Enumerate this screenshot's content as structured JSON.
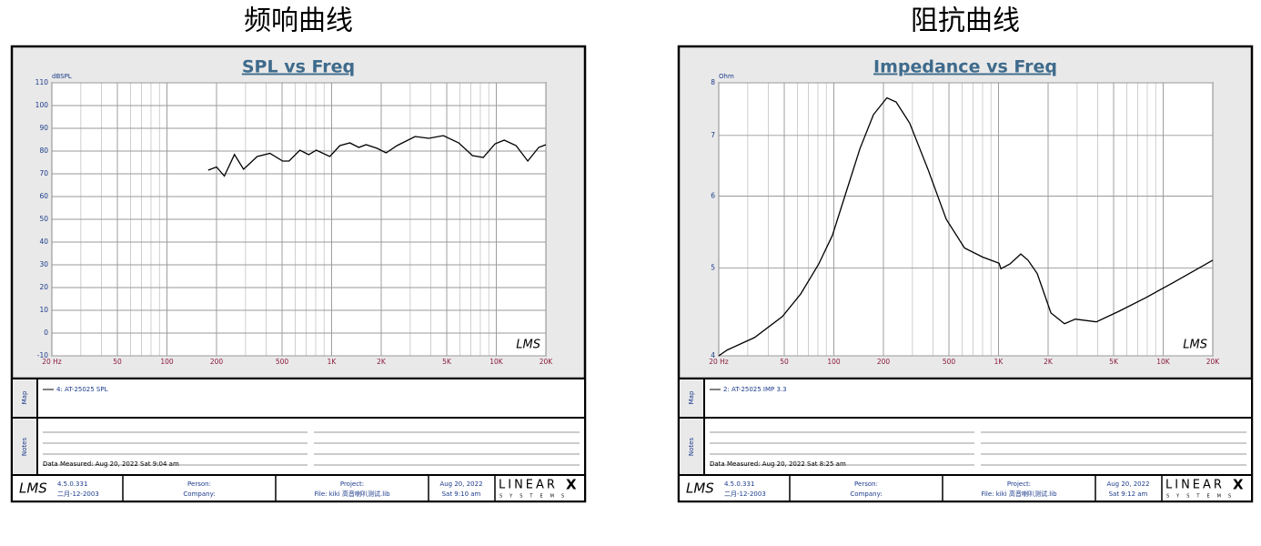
{
  "chart_data": [
    {
      "type": "line",
      "heading": "频响曲线",
      "title": "SPL vs Freq",
      "y_label": "dBSPL",
      "log_x": true,
      "log_y": false,
      "grid": true,
      "xlim": [
        20,
        20000
      ],
      "xticks": [
        {
          "value": 20,
          "label": "20 Hz"
        },
        50,
        100,
        200,
        500,
        {
          "value": 1000,
          "label": "1K"
        },
        {
          "value": 2000,
          "label": "2K"
        },
        {
          "value": 5000,
          "label": "5K"
        },
        {
          "value": 10000,
          "label": "10K"
        },
        {
          "value": 20000,
          "label": "20K"
        }
      ],
      "ylim": [
        -10,
        110
      ],
      "yticks": [
        -10,
        0,
        10,
        20,
        30,
        40,
        50,
        60,
        70,
        80,
        90,
        100,
        110
      ],
      "x": [
        178,
        200,
        223,
        257,
        292,
        353,
        422,
        504,
        551,
        641,
        726,
        806,
        975,
        1122,
        1289,
        1463,
        1619,
        1888,
        2143,
        2494,
        3215,
        3889,
        4766,
        5911,
        7161,
        8336,
        9837,
        11163,
        13178,
        15530,
        18080,
        20000
      ],
      "series": [
        {
          "name": "4: AT-25025 SPL",
          "color": "#000000",
          "values": [
            71.6,
            73,
            69,
            78.5,
            72,
            77.6,
            79,
            75.6,
            75.6,
            80.4,
            78.4,
            80.4,
            77.6,
            82.4,
            83.6,
            81.6,
            82.8,
            81.2,
            79.2,
            82.4,
            86.4,
            85.6,
            86.8,
            83.6,
            78,
            77.2,
            83.2,
            84.8,
            82.4,
            75.6,
            81.6,
            82.8
          ]
        }
      ],
      "watermark": "LMS",
      "map_label": "Map",
      "notes_label": "Notes",
      "notes": "Data Measured: Aug 20, 2022  Sat  9:04 am",
      "version": "4.5.0.331",
      "date_code": "二月-12-2003",
      "person_label": "Person:",
      "company_label": "Company:",
      "project_label": "Project:",
      "file": "File: kiki 高音喇叭测试.lib",
      "print_date": "Aug 20, 2022",
      "print_time": "Sat  9:10 am",
      "brand": "LINEAR",
      "brand_mark": "X",
      "brand_sub": "SYSTEMS"
    },
    {
      "type": "line",
      "heading": "阻抗曲线",
      "title": "Impedance vs Freq",
      "y_label": "Ohm",
      "log_x": true,
      "log_y": true,
      "grid": true,
      "xlim": [
        20,
        20000
      ],
      "xticks": [
        {
          "value": 20,
          "label": "20 Hz"
        },
        50,
        100,
        200,
        500,
        {
          "value": 1000,
          "label": "1K"
        },
        {
          "value": 2000,
          "label": "2K"
        },
        {
          "value": 5000,
          "label": "5K"
        },
        {
          "value": 10000,
          "label": "10K"
        },
        {
          "value": 20000,
          "label": "20K"
        }
      ],
      "ylim": [
        4,
        8
      ],
      "yticks": [
        4,
        5,
        6,
        7,
        8
      ],
      "x": [
        20,
        22.5,
        33,
        48.7,
        62.9,
        81,
        98,
        119,
        144,
        174,
        210,
        239,
        289,
        373,
        481,
        621,
        800,
        1007,
        1033,
        1172,
        1365,
        1510,
        1717,
        2080,
        2515,
        2930,
        3926,
        5396,
        7904,
        11570,
        20000
      ],
      "series": [
        {
          "name": "2: AT-25025 IMP 3.3",
          "color": "#000000",
          "values": [
            4.0,
            4.06,
            4.19,
            4.42,
            4.68,
            5.05,
            5.43,
            6.07,
            6.77,
            7.38,
            7.7,
            7.62,
            7.22,
            6.42,
            5.66,
            5.26,
            5.14,
            5.06,
            4.99,
            5.05,
            5.18,
            5.1,
            4.93,
            4.46,
            4.34,
            4.39,
            4.36,
            4.48,
            4.64,
            4.82,
            5.1
          ]
        }
      ],
      "watermark": "LMS",
      "map_label": "Map",
      "notes_label": "Notes",
      "notes": "Data Measured: Aug 20, 2022  Sat  8:25 am",
      "version": "4.5.0.331",
      "date_code": "二月-12-2003",
      "person_label": "Person:",
      "company_label": "Company:",
      "project_label": "Project:",
      "file": "File: kiki 高音喇叭测试.lib",
      "print_date": "Aug 20, 2022",
      "print_time": "Sat  9:12 am",
      "brand": "LINEAR",
      "brand_mark": "X",
      "brand_sub": "SYSTEMS"
    }
  ]
}
